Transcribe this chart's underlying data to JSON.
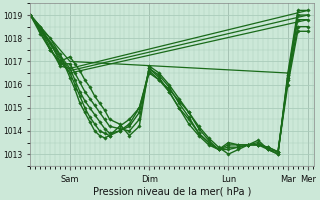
{
  "xlabel": "Pression niveau de la mer( hPa )",
  "ylim": [
    1012.5,
    1019.5
  ],
  "yticks": [
    1013,
    1014,
    1015,
    1016,
    1017,
    1018,
    1019
  ],
  "bg_color": "#cce8d8",
  "grid_color": "#aaccbb",
  "line_color": "#1a6b1a",
  "day_labels": [
    "Sam",
    "Dim",
    "Lun",
    "Mar",
    "Mer"
  ],
  "day_positions": [
    24,
    72,
    120,
    156,
    168
  ],
  "xlim": [
    0,
    172
  ],
  "xtick_minor_step": 3,
  "series": [
    {
      "x": [
        0,
        6,
        12,
        18,
        24,
        27,
        30,
        33,
        36,
        39,
        42,
        45,
        48,
        54,
        60,
        66,
        72,
        78,
        84,
        90,
        96,
        102,
        108,
        114,
        120,
        126,
        132,
        138,
        144,
        150,
        156,
        162,
        168
      ],
      "y": [
        1019.0,
        1018.5,
        1018.0,
        1017.3,
        1016.3,
        1015.8,
        1015.2,
        1014.8,
        1014.4,
        1014.0,
        1013.8,
        1013.7,
        1013.8,
        1014.2,
        1014.5,
        1015.0,
        1016.5,
        1016.2,
        1015.8,
        1015.3,
        1014.8,
        1014.2,
        1013.7,
        1013.3,
        1013.0,
        1013.2,
        1013.4,
        1013.6,
        1013.2,
        1013.0,
        1016.5,
        1019.2,
        1019.2
      ],
      "marker": true,
      "lw": 1.0
    },
    {
      "x": [
        0,
        6,
        12,
        18,
        24,
        27,
        30,
        33,
        36,
        39,
        42,
        45,
        48,
        54,
        60,
        66,
        72,
        78,
        84,
        90,
        96,
        102,
        108,
        114,
        120,
        126,
        132,
        138,
        144,
        150,
        156,
        162,
        168
      ],
      "y": [
        1019.0,
        1018.5,
        1017.8,
        1017.0,
        1016.5,
        1016.0,
        1015.5,
        1015.0,
        1014.6,
        1014.3,
        1014.0,
        1013.9,
        1013.8,
        1014.0,
        1014.3,
        1015.0,
        1016.6,
        1016.2,
        1015.7,
        1015.0,
        1014.5,
        1013.9,
        1013.5,
        1013.2,
        1013.2,
        1013.3,
        1013.4,
        1013.5,
        1013.2,
        1013.0,
        1016.4,
        1019.0,
        1019.0
      ],
      "marker": true,
      "lw": 1.0
    },
    {
      "x": [
        0,
        6,
        12,
        18,
        24,
        27,
        30,
        33,
        36,
        39,
        42,
        45,
        48,
        54,
        60,
        66,
        72,
        78,
        84,
        90,
        96,
        102,
        108,
        114,
        120,
        126,
        132,
        138,
        144,
        150,
        156,
        162,
        168
      ],
      "y": [
        1019.0,
        1018.4,
        1017.6,
        1016.8,
        1016.7,
        1016.2,
        1015.7,
        1015.3,
        1015.0,
        1014.7,
        1014.4,
        1014.1,
        1013.9,
        1014.0,
        1014.2,
        1014.8,
        1016.7,
        1016.3,
        1015.7,
        1015.0,
        1014.3,
        1013.8,
        1013.4,
        1013.2,
        1013.3,
        1013.3,
        1013.4,
        1013.4,
        1013.2,
        1013.1,
        1016.3,
        1018.8,
        1018.8
      ],
      "marker": true,
      "lw": 1.0
    },
    {
      "x": [
        0,
        6,
        12,
        18,
        24,
        27,
        30,
        33,
        36,
        39,
        42,
        45,
        48,
        54,
        60,
        66,
        72,
        78,
        84,
        90,
        96,
        102,
        108,
        114,
        120,
        126,
        132,
        138,
        144,
        150,
        156,
        162,
        168
      ],
      "y": [
        1019.0,
        1018.3,
        1017.5,
        1016.9,
        1016.9,
        1016.5,
        1016.1,
        1015.7,
        1015.4,
        1015.1,
        1014.8,
        1014.5,
        1014.2,
        1014.1,
        1014.0,
        1014.5,
        1016.7,
        1016.4,
        1015.9,
        1015.2,
        1014.6,
        1013.9,
        1013.5,
        1013.2,
        1013.4,
        1013.4,
        1013.4,
        1013.4,
        1013.3,
        1013.1,
        1016.2,
        1018.5,
        1018.5
      ],
      "marker": true,
      "lw": 1.0
    },
    {
      "x": [
        0,
        6,
        12,
        18,
        24,
        27,
        30,
        33,
        36,
        39,
        42,
        45,
        48,
        54,
        60,
        66,
        72,
        78,
        84,
        90,
        96,
        102,
        108,
        114,
        120,
        126,
        132,
        138,
        144,
        150,
        156,
        162,
        168
      ],
      "y": [
        1019.0,
        1018.2,
        1017.5,
        1017.0,
        1017.2,
        1016.9,
        1016.6,
        1016.2,
        1015.9,
        1015.5,
        1015.2,
        1014.9,
        1014.5,
        1014.3,
        1013.8,
        1014.2,
        1016.8,
        1016.5,
        1016.0,
        1015.4,
        1014.8,
        1014.1,
        1013.6,
        1013.2,
        1013.5,
        1013.4,
        1013.4,
        1013.4,
        1013.3,
        1013.1,
        1016.0,
        1018.3,
        1018.3
      ],
      "marker": true,
      "lw": 1.0
    },
    {
      "x": [
        0,
        24,
        168
      ],
      "y": [
        1019.0,
        1016.7,
        1019.2
      ],
      "marker": false,
      "lw": 0.9
    },
    {
      "x": [
        0,
        24,
        168
      ],
      "y": [
        1019.0,
        1016.6,
        1019.0
      ],
      "marker": false,
      "lw": 0.9
    },
    {
      "x": [
        0,
        24,
        168
      ],
      "y": [
        1019.0,
        1016.5,
        1018.8
      ],
      "marker": false,
      "lw": 0.9
    },
    {
      "x": [
        0,
        24,
        156
      ],
      "y": [
        1019.0,
        1017.0,
        1016.5
      ],
      "marker": false,
      "lw": 0.9
    }
  ]
}
